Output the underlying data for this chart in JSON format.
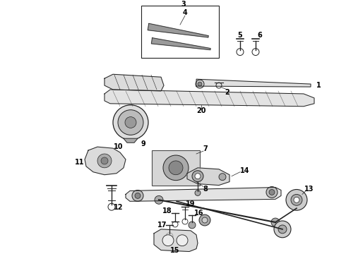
{
  "background_color": "#ffffff",
  "line_color": "#222222",
  "label_color": "#000000",
  "fig_width": 4.9,
  "fig_height": 3.6,
  "dpi": 100
}
